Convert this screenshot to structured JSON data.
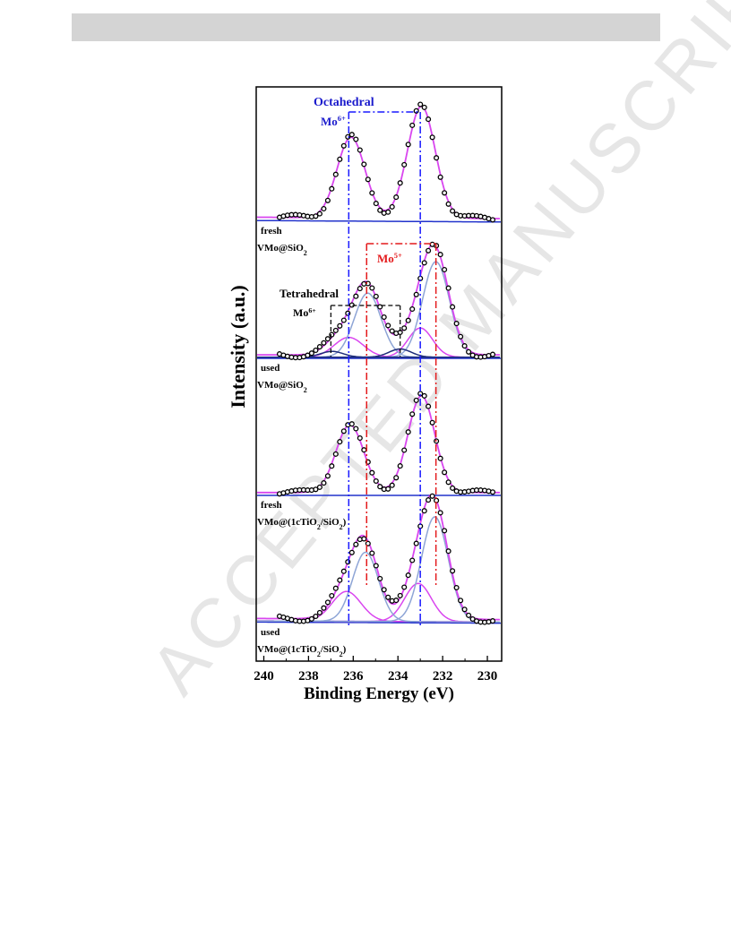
{
  "page": {
    "header_bar_color": "#d4d4d4"
  },
  "watermark": {
    "text": "ACCEPTED MANUSCRIPT",
    "color": "#c8c8c8"
  },
  "chart_data": {
    "type": "line",
    "title": "",
    "xlabel": "Binding Energy (eV)",
    "ylabel": "Intensity (a.u.)",
    "xlim": [
      240.3,
      229.4
    ],
    "x_reversed": true,
    "xticks": [
      240,
      238,
      236,
      234,
      232,
      230
    ],
    "grid": false,
    "legend": "none",
    "colors": {
      "data_markers": "#000000",
      "fit_envelope": "#d946ef",
      "octahedral_component": "#8ea5d6",
      "tetrahedral_component": "#1f2d7a",
      "background": "#2233cc",
      "octahedral_guide": "#1a1aff",
      "mo5_guide": "#e41a1c",
      "tetra_guide": "#000000"
    },
    "annotations": {
      "octahedral": {
        "text": "Octahedral",
        "color": "#1a1acc"
      },
      "octahedral_mo": {
        "base": "Mo",
        "sup": "6+",
        "color": "#1a1acc"
      },
      "mo5": {
        "base": "Mo",
        "sup": "5+",
        "color": "#e41a1c"
      },
      "tetrahedral": {
        "text": "Tetrahedral",
        "color": "#000000"
      },
      "tetrahedral_mo": {
        "base": "Mo",
        "sup": "6+",
        "color": "#000000"
      }
    },
    "guide_positions_ev": {
      "octahedral": [
        236.2,
        233.0
      ],
      "mo5": [
        235.4,
        232.3
      ],
      "tetrahedral": [
        237.0,
        233.9
      ]
    },
    "panels": [
      {
        "label_line1": "fresh",
        "label_line2": {
          "pre": "VMo@SiO",
          "sub": "2",
          "post": ""
        },
        "peaks": [
          {
            "center": 236.1,
            "amp": 0.72,
            "width": 0.62
          },
          {
            "center": 232.95,
            "amp": 1.0,
            "width": 0.62
          }
        ],
        "components": [],
        "baseline": [
          0.04,
          -0.04
        ]
      },
      {
        "label_line1": "used",
        "label_line2": {
          "pre": "VMo@SiO",
          "sub": "2",
          "post": ""
        },
        "peaks": [
          {
            "center": 236.2,
            "amp": 0.17,
            "width": 0.65
          },
          {
            "center": 235.35,
            "amp": 0.55,
            "width": 0.6
          },
          {
            "center": 233.0,
            "amp": 0.25,
            "width": 0.55
          },
          {
            "center": 232.3,
            "amp": 0.82,
            "width": 0.6
          },
          {
            "center": 236.95,
            "amp": 0.05,
            "width": 0.5
          },
          {
            "center": 233.9,
            "amp": 0.07,
            "width": 0.5
          }
        ],
        "components": [
          {
            "role": "oct",
            "center": 236.2,
            "amp": 0.17,
            "width": 0.65
          },
          {
            "role": "oct",
            "center": 233.0,
            "amp": 0.25,
            "width": 0.55
          },
          {
            "role": "mo5",
            "center": 235.35,
            "amp": 0.55,
            "width": 0.6
          },
          {
            "role": "mo5",
            "center": 232.3,
            "amp": 0.82,
            "width": 0.6
          },
          {
            "role": "tet",
            "center": 236.95,
            "amp": 0.05,
            "width": 0.5
          },
          {
            "role": "tet",
            "center": 233.9,
            "amp": 0.07,
            "width": 0.5
          }
        ],
        "baseline": [
          0.0,
          0.0
        ]
      },
      {
        "label_line1": "fresh",
        "label_line2": {
          "pre": "VMo@(1cTiO",
          "sub": "2",
          "mid": "/SiO",
          "sub2": "2",
          "post": ")"
        },
        "peaks": [
          {
            "center": 236.15,
            "amp": 0.7,
            "width": 0.62
          },
          {
            "center": 232.95,
            "amp": 1.0,
            "width": 0.6
          }
        ],
        "components": [],
        "baseline": [
          0.0,
          0.0
        ]
      },
      {
        "label_line1": "used",
        "label_line2": {
          "pre": "VMo@(1cTiO",
          "sub": "2",
          "mid": "/SiO",
          "sub2": "2",
          "post": ")"
        },
        "peaks": [
          {
            "center": 236.3,
            "amp": 0.25,
            "width": 0.65
          },
          {
            "center": 235.45,
            "amp": 0.58,
            "width": 0.58
          },
          {
            "center": 233.1,
            "amp": 0.32,
            "width": 0.6
          },
          {
            "center": 232.35,
            "amp": 0.88,
            "width": 0.6
          }
        ],
        "components": [
          {
            "role": "oct",
            "center": 236.3,
            "amp": 0.25,
            "width": 0.65
          },
          {
            "role": "oct",
            "center": 233.1,
            "amp": 0.32,
            "width": 0.6
          },
          {
            "role": "mo5",
            "center": 235.45,
            "amp": 0.58,
            "width": 0.58
          },
          {
            "role": "mo5",
            "center": 232.35,
            "amp": 0.88,
            "width": 0.6
          }
        ],
        "baseline": [
          0.03,
          -0.03
        ]
      }
    ]
  }
}
